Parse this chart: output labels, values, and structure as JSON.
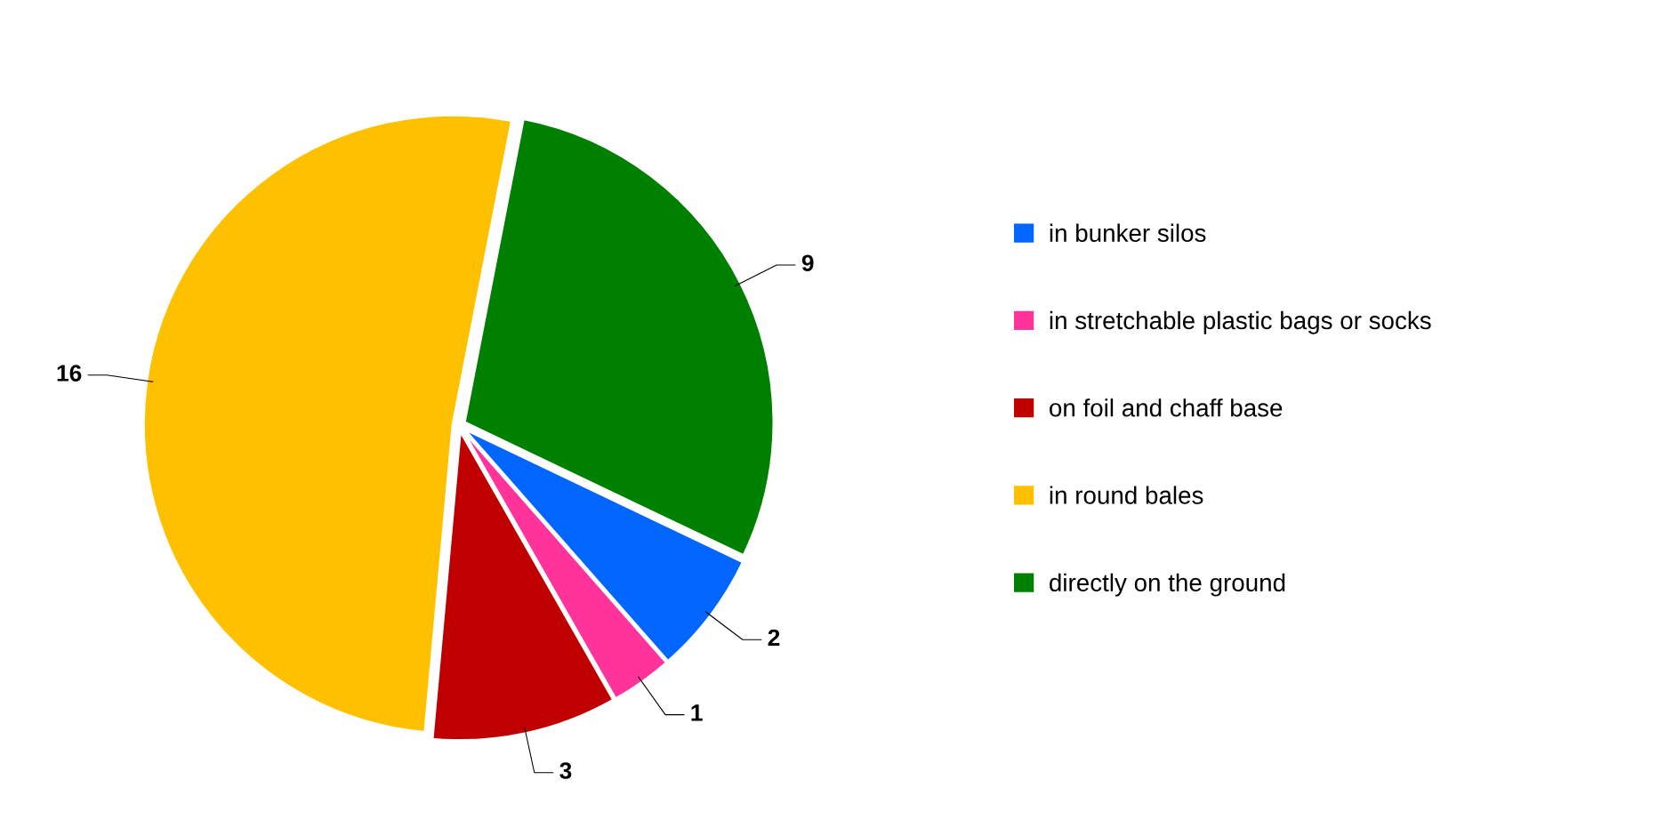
{
  "chart_data": {
    "type": "pie",
    "categories": [
      "in bunker silos",
      "in stretchable plastic bags or socks",
      "on foil and chaff base",
      "in round bales",
      "directly on the ground"
    ],
    "values": [
      2,
      1,
      3,
      16,
      9
    ],
    "colors": [
      "#0066ff",
      "#ff3399",
      "#c00000",
      "#ffc000",
      "#008000"
    ],
    "data_labels": true,
    "legend": "right"
  }
}
